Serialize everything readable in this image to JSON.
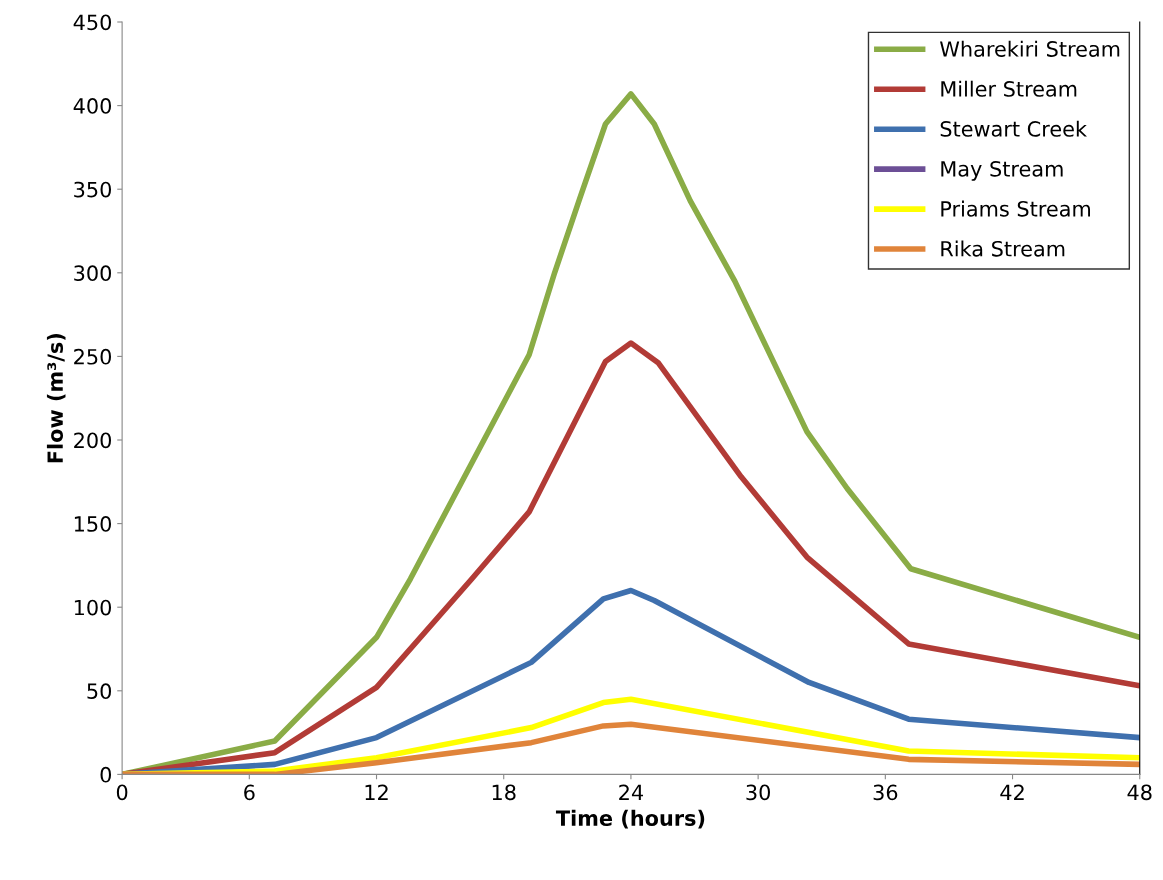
{
  "chart_data": {
    "type": "line",
    "xlabel": "Time (hours)",
    "ylabel": "Flow (m³/s)",
    "xlim": [
      0,
      48
    ],
    "xticks": [
      0,
      6,
      12,
      18,
      24,
      30,
      36,
      42,
      48
    ],
    "ylim": [
      0,
      450
    ],
    "yticks": [
      0,
      50,
      100,
      150,
      200,
      250,
      300,
      350,
      400,
      450
    ],
    "grid": false,
    "legend": "top right",
    "marker": "none",
    "line_style": "solid",
    "series": [
      {
        "name": "Wharekiri Stream",
        "color": "#8aac46",
        "x": [
          0,
          7.2,
          12,
          13.6,
          19.2,
          20.4,
          21.6,
          22.8,
          24,
          25.1,
          26.8,
          28.9,
          32.3,
          34.2,
          37.2,
          48
        ],
        "values": [
          0,
          20,
          82,
          117,
          251,
          300,
          345,
          389,
          407,
          389,
          343,
          295,
          205,
          171,
          123,
          82
        ]
      },
      {
        "name": "Miller Stream",
        "color": "#b23b36",
        "x": [
          0,
          7.2,
          12,
          16.5,
          19.2,
          22.8,
          24,
          25.3,
          29.2,
          32.3,
          37.1,
          48
        ],
        "values": [
          0,
          13,
          52,
          117,
          157,
          247,
          258,
          246,
          178,
          130,
          78,
          53
        ]
      },
      {
        "name": "Stewart Creek",
        "color": "#3f70ae",
        "x": [
          0,
          7.2,
          12,
          19.3,
          22.7,
          24,
          25.1,
          32.4,
          37.1,
          48
        ],
        "values": [
          0,
          6,
          22,
          67,
          105,
          110,
          104,
          55,
          33,
          22
        ]
      },
      {
        "name": "May Stream",
        "color": "#6c4f96"
      },
      {
        "name": "Priams Stream",
        "color": "#ffff00",
        "x": [
          0,
          7.2,
          12,
          19.3,
          22.7,
          24,
          37.1,
          48
        ],
        "values": [
          0,
          2,
          10,
          28,
          43,
          45,
          14,
          10
        ]
      },
      {
        "name": "Rika Stream",
        "color": "#e0843a",
        "x": [
          0,
          7.2,
          12,
          19.3,
          22.7,
          24,
          37.1,
          48
        ],
        "values": [
          0,
          0,
          7,
          19,
          29,
          30,
          9,
          6
        ]
      }
    ]
  }
}
